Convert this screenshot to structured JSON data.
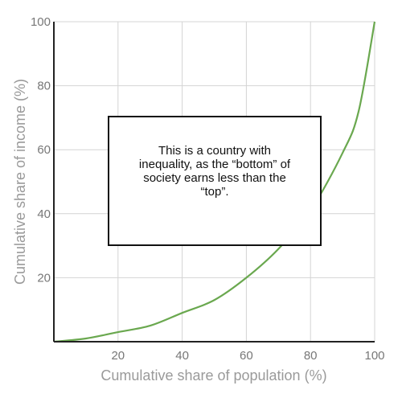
{
  "chart_data": {
    "type": "line",
    "title": "",
    "xlabel": "Cumulative share of population (%)",
    "ylabel": "Cumulative share of income (%)",
    "xlim": [
      0,
      100
    ],
    "ylim": [
      0,
      100
    ],
    "x_ticks": [
      "20",
      "40",
      "60",
      "80",
      "100"
    ],
    "y_ticks": [
      "20",
      "40",
      "60",
      "80",
      "100"
    ],
    "grid": true,
    "series": [
      {
        "color": "#6aa84f",
        "x": [
          0,
          10,
          20,
          30,
          40,
          50,
          60,
          70,
          80,
          90,
          95,
          100
        ],
        "y": [
          0,
          1,
          3,
          5,
          9,
          13,
          20,
          29,
          41,
          59,
          72,
          100
        ]
      }
    ],
    "annotation": "This is a country with inequality, as the “bottom” of society earns less than the “top”."
  }
}
